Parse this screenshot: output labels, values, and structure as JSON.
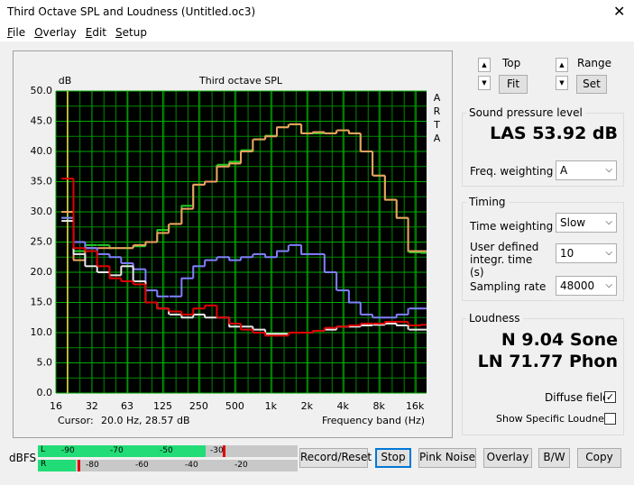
{
  "window": {
    "title": "Third Octave SPL and Loudness (Untitled.oc3)",
    "menu": [
      "File",
      "Overlay",
      "Edit",
      "Setup"
    ]
  },
  "chart_data": {
    "type": "line",
    "title": "Third octave SPL",
    "y_label": "dB",
    "x_label": "Frequency band (Hz)",
    "side_label": "ARTA",
    "cursor_label": "Cursor:",
    "cursor_value": "20.0 Hz, 28.57 dB",
    "x": [
      20,
      25,
      31.5,
      40,
      50,
      63,
      80,
      100,
      125,
      160,
      200,
      250,
      315,
      400,
      500,
      630,
      800,
      1000,
      1250,
      1600,
      2000,
      2500,
      3150,
      4000,
      5000,
      6300,
      8000,
      10000,
      12500,
      16000,
      20000
    ],
    "series": [
      {
        "color": "#22cc22",
        "values": [
          29,
          23.5,
          24.5,
          24.5,
          24,
          24,
          24.3,
          25,
          27,
          28,
          31,
          34.5,
          35,
          37.8,
          38.3,
          40.2,
          42,
          42.6,
          44,
          44.5,
          43,
          43,
          43,
          43.5,
          43,
          40,
          36,
          32,
          29,
          23.3,
          23.2
        ]
      },
      {
        "color": "#f0a060",
        "values": [
          30,
          22,
          24,
          24,
          24,
          24,
          24.5,
          25,
          26.5,
          28,
          30.5,
          34.5,
          35,
          37.5,
          38,
          40,
          42,
          42.5,
          44,
          44.5,
          43,
          43.2,
          43,
          43.5,
          43,
          40,
          36,
          32,
          29,
          23.5,
          23.5
        ]
      },
      {
        "color": "#8080ff",
        "values": [
          29,
          25,
          24,
          23,
          22.5,
          21.5,
          20.5,
          17,
          16,
          16,
          19,
          21,
          22,
          22.5,
          22,
          22.5,
          23,
          22.5,
          23.5,
          24.5,
          23,
          23,
          20,
          17,
          15,
          13,
          12.5,
          12.5,
          13,
          14,
          14
        ]
      },
      {
        "color": "#e8e8e8",
        "values": [
          28.5,
          23,
          21,
          20,
          19.5,
          21,
          18.5,
          15,
          14,
          13,
          12.5,
          13,
          12.5,
          12.5,
          11,
          11,
          10.5,
          9.8,
          9.8,
          10,
          10,
          10.3,
          10.5,
          11,
          11,
          11.2,
          11.3,
          11.5,
          11.2,
          10.5,
          10.5
        ]
      },
      {
        "color": "#e00000",
        "values": [
          35.5,
          24,
          23.5,
          21,
          19,
          18.5,
          18,
          15,
          14,
          13.5,
          13,
          14,
          14.5,
          12.5,
          11.5,
          10.5,
          10,
          9.5,
          9.5,
          10,
          10,
          10.3,
          10.8,
          11,
          11.2,
          11.5,
          11.5,
          11.8,
          11.8,
          11.2,
          11.3
        ]
      }
    ],
    "xlim": [
      16,
      20000
    ],
    "ylim": [
      0,
      50
    ],
    "log_x": true,
    "grid": true,
    "xticks": [
      16,
      32,
      63,
      125,
      250,
      500,
      {
        "value": 1000,
        "label": "1k"
      },
      {
        "value": 2000,
        "label": "2k"
      },
      {
        "value": 4000,
        "label": "4k"
      },
      {
        "value": 8000,
        "label": "8k"
      },
      {
        "value": 16000,
        "label": "16k"
      }
    ],
    "yticks": [
      {
        "value": 0,
        "label": "0.0"
      },
      {
        "value": 5,
        "label": "5.0"
      },
      {
        "value": 10,
        "label": "10.0"
      },
      {
        "value": 15,
        "label": "15.0"
      },
      {
        "value": 20,
        "label": "20.0"
      },
      {
        "value": 25,
        "label": "25.0"
      },
      {
        "value": 30,
        "label": "30.0"
      },
      {
        "value": 35,
        "label": "35.0"
      },
      {
        "value": 40,
        "label": "40.0"
      },
      {
        "value": 45,
        "label": "45.0"
      },
      {
        "value": 50,
        "label": "50.0"
      }
    ]
  },
  "controls": {
    "top": "Top",
    "fit": "Fit",
    "range": "Range",
    "set": "Set",
    "spl": {
      "group": "Sound pressure level",
      "reading": "LAS 53.92 dB",
      "weighting_label": "Freq. weighting",
      "weighting": "A"
    },
    "timing": {
      "group": "Timing",
      "time_weighting_label": "Time weighting",
      "time_weighting": "Slow",
      "integr_label": "User defined integr. time (s)",
      "integr": "10",
      "sampling_label": "Sampling rate",
      "sampling": "48000"
    },
    "loudness": {
      "group": "Loudness",
      "n": "N 9.04 Sone",
      "ln": "LN 71.77 Phon",
      "diffuse": "Diffuse field",
      "specific": "Show Specific Loudness"
    },
    "meter": {
      "label": "dBFS",
      "left": "L",
      "right": "R",
      "left_scale": [
        "-90",
        "-70",
        "-50",
        "-30"
      ],
      "right_scale": [
        "-80",
        "-60",
        "-40",
        "-20"
      ]
    },
    "buttons": [
      "Record/Reset",
      "Stop",
      "Pink Noise",
      "Overlay",
      "B/W",
      "Copy"
    ]
  }
}
